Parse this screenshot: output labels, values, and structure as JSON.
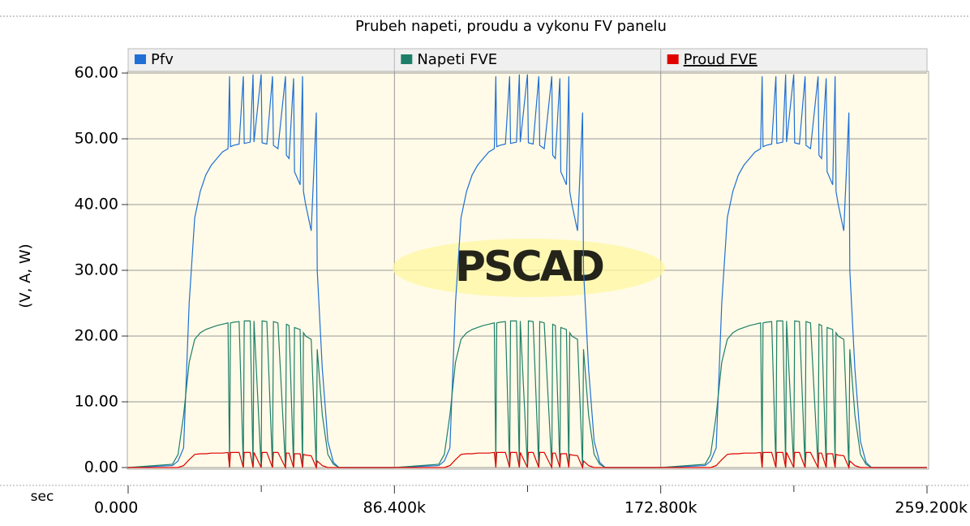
{
  "chart_data": {
    "type": "line",
    "title": "Prubeh napeti, proudu a vykonu FV panelu",
    "ylabel": "(V, A, W)",
    "xlabel": "sec",
    "watermark": "PSCAD",
    "x": [
      0,
      14400,
      16200,
      18000,
      19800,
      21600,
      23400,
      25200,
      27000,
      28800,
      30600,
      32400,
      32900,
      33200,
      34200,
      36000,
      37370,
      37670,
      39600,
      40530,
      40830,
      43160,
      43460,
      45000,
      46840,
      47140,
      48600,
      51050,
      51350,
      52200,
      53680,
      53980,
      55800,
      56580,
      56880,
      57600,
      59400,
      61050,
      61350,
      63000,
      64800,
      66600,
      68400,
      86400,
      100800,
      102600,
      104400,
      106200,
      108000,
      109800,
      111600,
      113400,
      115200,
      117000,
      118800,
      119300,
      119600,
      120600,
      122400,
      123770,
      124070,
      126000,
      126930,
      127230,
      129560,
      129860,
      131400,
      133240,
      133540,
      135000,
      137450,
      137750,
      138600,
      140080,
      140380,
      142200,
      142980,
      143280,
      144000,
      145800,
      147450,
      147750,
      149400,
      151200,
      153000,
      154800,
      172800,
      187200,
      189000,
      190800,
      192600,
      194400,
      196200,
      198000,
      199800,
      201600,
      203400,
      205200,
      205700,
      206000,
      207000,
      208800,
      210170,
      210470,
      212400,
      213330,
      213630,
      215960,
      216260,
      217800,
      219640,
      219940,
      221400,
      223850,
      224150,
      225000,
      226480,
      226780,
      228600,
      229380,
      229680,
      230400,
      232200,
      233850,
      234150,
      235800,
      237600,
      239400,
      241200,
      259200
    ],
    "series": [
      {
        "name": "Pfv",
        "color": "#1f6fd6",
        "values": [
          0,
          0.3,
          1,
          3,
          25,
          38,
          42,
          44.5,
          46,
          47,
          48,
          48.5,
          59.5,
          48.8,
          49,
          49.2,
          59.5,
          49.3,
          49.5,
          59.8,
          49.5,
          59.8,
          49.4,
          49.2,
          59.5,
          49,
          48.5,
          59.5,
          47.5,
          47,
          59.2,
          45,
          43,
          59.5,
          42,
          40,
          36,
          54,
          30,
          15,
          4,
          0.8,
          0,
          0,
          0.3,
          1,
          3,
          25,
          38,
          42,
          44.5,
          46,
          47,
          48,
          48.5,
          59.5,
          48.8,
          49,
          49.2,
          59.5,
          49.3,
          49.5,
          59.8,
          49.5,
          59.8,
          49.4,
          49.2,
          59.5,
          49,
          48.5,
          59.5,
          47.5,
          47,
          59.2,
          45,
          43,
          59.5,
          42,
          40,
          36,
          54,
          30,
          15,
          4,
          0.8,
          0,
          0,
          0.3,
          1,
          3,
          25,
          38,
          42,
          44.5,
          46,
          47,
          48,
          48.5,
          59.5,
          48.8,
          49,
          49.2,
          59.5,
          49.3,
          49.5,
          59.8,
          49.5,
          59.8,
          49.4,
          49.2,
          59.5,
          49,
          48.5,
          59.5,
          47.5,
          47,
          59.2,
          45,
          43,
          59.5,
          42,
          40,
          36,
          54,
          30,
          15,
          4,
          0.8,
          0,
          0
        ]
      },
      {
        "name": "Napeti FVE",
        "color": "#1e7f68",
        "values": [
          0,
          0.5,
          2,
          8,
          16,
          19.5,
          20.5,
          21,
          21.3,
          21.6,
          21.8,
          22,
          0,
          22,
          22.1,
          22.2,
          0,
          22.3,
          22.3,
          0,
          22.3,
          0,
          22.3,
          22.2,
          0,
          22.2,
          22,
          0,
          21.8,
          21.6,
          0,
          21.3,
          21,
          0,
          20.5,
          20,
          19.5,
          0,
          18,
          8,
          2,
          0.5,
          0,
          0,
          0.5,
          2,
          8,
          16,
          19.5,
          20.5,
          21,
          21.3,
          21.6,
          21.8,
          22,
          0,
          22,
          22.1,
          22.2,
          0,
          22.3,
          22.3,
          0,
          22.3,
          0,
          22.3,
          22.2,
          0,
          22.2,
          22,
          0,
          21.8,
          21.6,
          0,
          21.3,
          21,
          0,
          20.5,
          20,
          19.5,
          0,
          18,
          8,
          2,
          0.5,
          0,
          0,
          0.5,
          2,
          8,
          16,
          19.5,
          20.5,
          21,
          21.3,
          21.6,
          21.8,
          22,
          0,
          22,
          22.1,
          22.2,
          0,
          22.3,
          22.3,
          0,
          22.3,
          0,
          22.3,
          22.2,
          0,
          22.2,
          22,
          0,
          21.8,
          21.6,
          0,
          21.3,
          21,
          0,
          20.5,
          20,
          19.5,
          0,
          18,
          8,
          2,
          0.5,
          0,
          0
        ]
      },
      {
        "name": "Proud FVE",
        "color": "#e00000",
        "values": [
          0,
          0,
          0,
          0.3,
          1.2,
          2,
          2.1,
          2.1,
          2.2,
          2.2,
          2.2,
          2.3,
          0,
          2.3,
          2.3,
          2.3,
          0,
          2.3,
          2.3,
          0,
          2.3,
          0,
          2.3,
          2.3,
          0,
          2.3,
          2.3,
          0,
          2.2,
          2.2,
          0,
          2.1,
          2.1,
          0,
          2,
          1.9,
          1.8,
          0,
          1,
          0.3,
          0,
          0,
          0,
          0,
          0,
          0,
          0.3,
          1.2,
          2,
          2.1,
          2.1,
          2.2,
          2.2,
          2.2,
          2.3,
          0,
          2.3,
          2.3,
          2.3,
          0,
          2.3,
          2.3,
          0,
          2.3,
          0,
          2.3,
          2.3,
          0,
          2.3,
          2.3,
          0,
          2.2,
          2.2,
          0,
          2.1,
          2.1,
          0,
          2,
          1.9,
          1.8,
          0,
          1,
          0.3,
          0,
          0,
          0,
          0,
          0,
          0,
          0.3,
          1.2,
          2,
          2.1,
          2.1,
          2.2,
          2.2,
          2.2,
          2.3,
          0,
          2.3,
          2.3,
          2.3,
          0,
          2.3,
          2.3,
          0,
          2.3,
          0,
          2.3,
          2.3,
          0,
          2.3,
          2.3,
          0,
          2.2,
          2.2,
          0,
          2.1,
          2.1,
          0,
          2,
          1.9,
          1.8,
          0,
          1,
          0.3,
          0,
          0,
          0,
          0
        ]
      }
    ],
    "xlim": [
      0,
      259200
    ],
    "xticks": [
      {
        "value": 0,
        "label": "0.000"
      },
      {
        "value": 86400,
        "label": "86.400k"
      },
      {
        "value": 172800,
        "label": "172.800k"
      },
      {
        "value": 259200,
        "label": "259.200k"
      }
    ],
    "xminor_ticks": [
      43200,
      129600,
      216000
    ],
    "ylim": [
      0,
      60
    ],
    "yticks": [
      {
        "value": 0,
        "label": "0.00"
      },
      {
        "value": 10,
        "label": "10.00"
      },
      {
        "value": 20,
        "label": "20.00"
      },
      {
        "value": 30,
        "label": "30.00"
      },
      {
        "value": 40,
        "label": "40.00"
      },
      {
        "value": 50,
        "label": "50.00"
      },
      {
        "value": 60,
        "label": "60.00"
      }
    ],
    "grid": true,
    "background": "#fffbe8"
  }
}
